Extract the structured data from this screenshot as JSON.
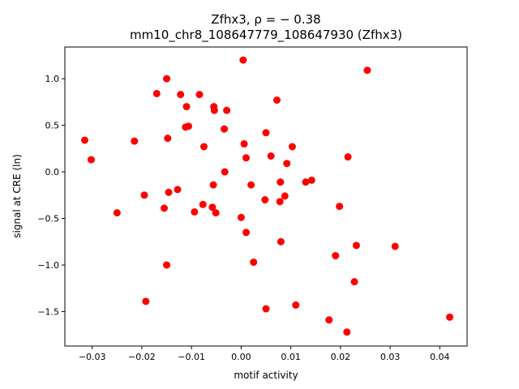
{
  "chart_data": {
    "type": "scatter",
    "title_line1": "Zfhx3, ρ = − 0.38",
    "title_line2": "mm10_chr8_108647779_108647930 (Zfhx3)",
    "xlabel": "motif activity",
    "ylabel": "signal at CRE (ln)",
    "xlim": [
      -0.0355,
      0.0455
    ],
    "ylim": [
      -1.87,
      1.34
    ],
    "xticks": [
      -0.03,
      -0.02,
      -0.01,
      0.0,
      0.01,
      0.02,
      0.03,
      0.04
    ],
    "xtick_labels": [
      "−0.03",
      "−0.02",
      "−0.01",
      "0.00",
      "0.01",
      "0.02",
      "0.03",
      "0.04"
    ],
    "yticks": [
      1.0,
      0.5,
      0.0,
      -0.5,
      -1.0,
      -1.5
    ],
    "ytick_labels": [
      "1.0",
      "0.5",
      "0.0",
      "−0.5",
      "−1.0",
      "−1.5"
    ],
    "marker_color": "#ff0000",
    "grid": false,
    "points": [
      [
        -0.0315,
        0.34
      ],
      [
        -0.0302,
        0.13
      ],
      [
        -0.025,
        -0.44
      ],
      [
        -0.0215,
        0.33
      ],
      [
        -0.0195,
        -0.25
      ],
      [
        -0.0192,
        -1.39
      ],
      [
        -0.017,
        0.84
      ],
      [
        -0.0155,
        -0.39
      ],
      [
        -0.015,
        1.0
      ],
      [
        -0.015,
        -1.0
      ],
      [
        -0.0148,
        0.36
      ],
      [
        -0.0146,
        -0.22
      ],
      [
        -0.0128,
        -0.19
      ],
      [
        -0.0122,
        0.83
      ],
      [
        -0.0112,
        0.48
      ],
      [
        -0.011,
        0.7
      ],
      [
        -0.0106,
        0.49
      ],
      [
        -0.0094,
        -0.43
      ],
      [
        -0.0084,
        0.83
      ],
      [
        -0.0077,
        -0.35
      ],
      [
        -0.0075,
        0.27
      ],
      [
        -0.0058,
        -0.38
      ],
      [
        -0.0056,
        -0.14
      ],
      [
        -0.0055,
        0.7
      ],
      [
        -0.0054,
        0.66
      ],
      [
        -0.0051,
        -0.44
      ],
      [
        -0.0034,
        0.46
      ],
      [
        -0.0033,
        0.0
      ],
      [
        -0.0029,
        0.66
      ],
      [
        0.0,
        -0.49
      ],
      [
        0.0004,
        1.2
      ],
      [
        0.0006,
        0.3
      ],
      [
        0.001,
        0.15
      ],
      [
        0.001,
        -0.65
      ],
      [
        0.002,
        -0.14
      ],
      [
        0.0025,
        -0.97
      ],
      [
        0.0048,
        -0.3
      ],
      [
        0.005,
        0.42
      ],
      [
        0.005,
        -1.47
      ],
      [
        0.006,
        0.17
      ],
      [
        0.0072,
        0.77
      ],
      [
        0.0078,
        -0.32
      ],
      [
        0.0079,
        -0.11
      ],
      [
        0.008,
        -0.75
      ],
      [
        0.0088,
        -0.26
      ],
      [
        0.0092,
        0.09
      ],
      [
        0.0103,
        0.27
      ],
      [
        0.011,
        -1.43
      ],
      [
        0.013,
        -0.11
      ],
      [
        0.0142,
        -0.09
      ],
      [
        0.0177,
        -1.59
      ],
      [
        0.019,
        -0.9
      ],
      [
        0.0198,
        -0.37
      ],
      [
        0.0213,
        -1.72
      ],
      [
        0.0215,
        0.16
      ],
      [
        0.0228,
        -1.18
      ],
      [
        0.0232,
        -0.79
      ],
      [
        0.0254,
        1.09
      ],
      [
        0.031,
        -0.8
      ],
      [
        0.042,
        -1.56
      ]
    ]
  }
}
